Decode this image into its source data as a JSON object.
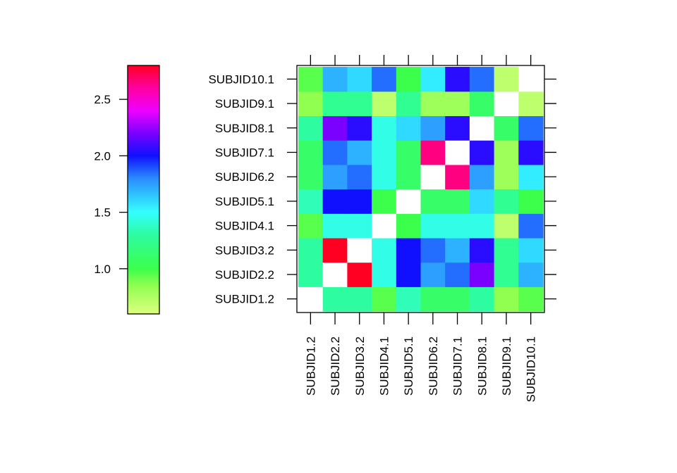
{
  "chart_data": {
    "type": "heatmap",
    "title": "",
    "xlabel": "",
    "ylabel": "",
    "x_categories": [
      "SUBJID1.2",
      "SUBJID2.2",
      "SUBJID3.2",
      "SUBJID4.1",
      "SUBJID5.1",
      "SUBJID6.2",
      "SUBJID7.1",
      "SUBJID8.1",
      "SUBJID9.1",
      "SUBJID10.1"
    ],
    "y_categories": [
      "SUBJID1.2",
      "SUBJID2.2",
      "SUBJID3.2",
      "SUBJID4.1",
      "SUBJID5.1",
      "SUBJID6.2",
      "SUBJID7.1",
      "SUBJID8.1",
      "SUBJID9.1",
      "SUBJID10.1"
    ],
    "values": [
      [
        null,
        1.3,
        1.3,
        0.95,
        1.35,
        1.1,
        1.1,
        1.3,
        0.85,
        0.95
      ],
      [
        1.3,
        null,
        2.8,
        1.45,
        2.0,
        1.75,
        1.85,
        2.2,
        1.25,
        1.7
      ],
      [
        1.3,
        2.8,
        null,
        1.45,
        2.0,
        1.85,
        1.7,
        2.05,
        1.25,
        1.6
      ],
      [
        0.95,
        1.45,
        1.45,
        null,
        1.0,
        1.45,
        1.45,
        1.45,
        0.7,
        1.85
      ],
      [
        1.35,
        2.0,
        2.0,
        1.0,
        null,
        1.1,
        1.1,
        1.6,
        1.25,
        1.0
      ],
      [
        1.1,
        1.75,
        1.85,
        1.45,
        1.1,
        null,
        2.65,
        1.75,
        0.8,
        1.55
      ],
      [
        1.1,
        1.85,
        1.7,
        1.45,
        1.1,
        2.65,
        null,
        2.05,
        0.8,
        2.05
      ],
      [
        1.3,
        2.2,
        2.05,
        1.45,
        1.6,
        1.75,
        2.05,
        null,
        1.1,
        1.85
      ],
      [
        0.85,
        1.25,
        1.25,
        0.7,
        1.25,
        0.8,
        0.8,
        1.1,
        null,
        0.7
      ],
      [
        0.95,
        1.7,
        1.6,
        1.85,
        1.0,
        1.55,
        2.05,
        1.85,
        0.7,
        null
      ]
    ],
    "missing_color": "#ffffff",
    "colorbar": {
      "range": [
        0.6,
        2.8
      ],
      "ticks": [
        1.0,
        1.5,
        2.0,
        2.5
      ],
      "tick_labels": [
        "1.0",
        "1.5",
        "2.0",
        "2.5"
      ]
    },
    "colorscale": [
      {
        "v": 0.6,
        "color": "#dcff80"
      },
      {
        "v": 0.85,
        "color": "#90ff50"
      },
      {
        "v": 1.0,
        "color": "#3cff4c"
      },
      {
        "v": 1.3,
        "color": "#2dfca0"
      },
      {
        "v": 1.5,
        "color": "#33ffff"
      },
      {
        "v": 1.8,
        "color": "#2a8cff"
      },
      {
        "v": 2.0,
        "color": "#1010ff"
      },
      {
        "v": 2.2,
        "color": "#7a00ff"
      },
      {
        "v": 2.4,
        "color": "#ee00ff"
      },
      {
        "v": 2.6,
        "color": "#ff00a0"
      },
      {
        "v": 2.8,
        "color": "#ff0022"
      }
    ],
    "grid": false,
    "legend_position": "left"
  }
}
